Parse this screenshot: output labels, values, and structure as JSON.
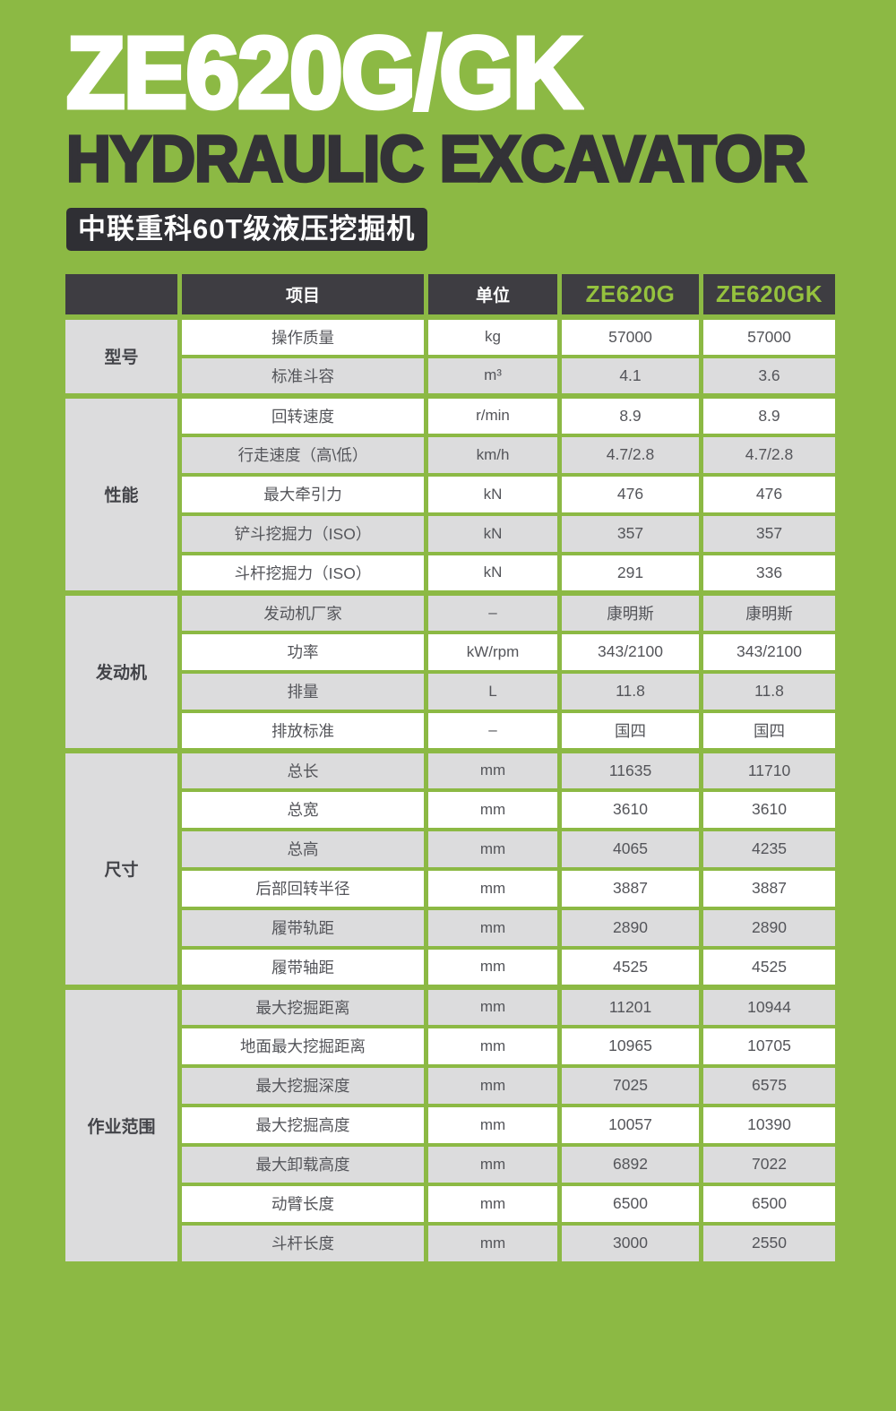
{
  "colors": {
    "background_green": "#8cb944",
    "header_dark": "#3e3d42",
    "badge_dark": "#2f2f34",
    "row_gray": "#dcdcdd",
    "model_green": "#95c23e",
    "cell_text": "#54555a"
  },
  "hero": {
    "model_title": "ZE620G/GK",
    "subtitle": "HYDRAULIC EXCAVATOR",
    "badge": "中联重科60T级液压挖掘机"
  },
  "table": {
    "columns": [
      "项目",
      "单位",
      "ZE620G",
      "ZE620GK"
    ],
    "sections": [
      {
        "group": "型号",
        "rows": [
          {
            "item": "操作质量",
            "unit": "kg",
            "g": "57000",
            "gk": "57000"
          },
          {
            "item": "标准斗容",
            "unit": "m³",
            "g": "4.1",
            "gk": "3.6"
          }
        ]
      },
      {
        "group": "性能",
        "rows": [
          {
            "item": "回转速度",
            "unit": "r/min",
            "g": "8.9",
            "gk": "8.9"
          },
          {
            "item": "行走速度（高\\低）",
            "unit": "km/h",
            "g": "4.7/2.8",
            "gk": "4.7/2.8"
          },
          {
            "item": "最大牵引力",
            "unit": "kN",
            "g": "476",
            "gk": "476"
          },
          {
            "item": "铲斗挖掘力（ISO）",
            "unit": "kN",
            "g": "357",
            "gk": "357"
          },
          {
            "item": "斗杆挖掘力（ISO）",
            "unit": "kN",
            "g": "291",
            "gk": "336"
          }
        ]
      },
      {
        "group": "发动机",
        "rows": [
          {
            "item": "发动机厂家",
            "unit": "–",
            "g": "康明斯",
            "gk": "康明斯"
          },
          {
            "item": "功率",
            "unit": "kW/rpm",
            "g": "343/2100",
            "gk": "343/2100"
          },
          {
            "item": "排量",
            "unit": "L",
            "g": "11.8",
            "gk": "11.8"
          },
          {
            "item": "排放标准",
            "unit": "–",
            "g": "国四",
            "gk": "国四"
          }
        ]
      },
      {
        "group": "尺寸",
        "rows": [
          {
            "item": "总长",
            "unit": "mm",
            "g": "11635",
            "gk": "11710"
          },
          {
            "item": "总宽",
            "unit": "mm",
            "g": "3610",
            "gk": "3610"
          },
          {
            "item": "总高",
            "unit": "mm",
            "g": "4065",
            "gk": "4235"
          },
          {
            "item": "后部回转半径",
            "unit": "mm",
            "g": "3887",
            "gk": "3887"
          },
          {
            "item": "履带轨距",
            "unit": "mm",
            "g": "2890",
            "gk": "2890"
          },
          {
            "item": "履带轴距",
            "unit": "mm",
            "g": "4525",
            "gk": "4525"
          }
        ]
      },
      {
        "group": "作业范围",
        "rows": [
          {
            "item": "最大挖掘距离",
            "unit": "mm",
            "g": "11201",
            "gk": "10944"
          },
          {
            "item": "地面最大挖掘距离",
            "unit": "mm",
            "g": "10965",
            "gk": "10705"
          },
          {
            "item": "最大挖掘深度",
            "unit": "mm",
            "g": "7025",
            "gk": "6575"
          },
          {
            "item": "最大挖掘高度",
            "unit": "mm",
            "g": "10057",
            "gk": "10390"
          },
          {
            "item": "最大卸载高度",
            "unit": "mm",
            "g": "6892",
            "gk": "7022"
          },
          {
            "item": "动臂长度",
            "unit": "mm",
            "g": "6500",
            "gk": "6500"
          },
          {
            "item": "斗杆长度",
            "unit": "mm",
            "g": "3000",
            "gk": "2550"
          }
        ]
      }
    ]
  }
}
